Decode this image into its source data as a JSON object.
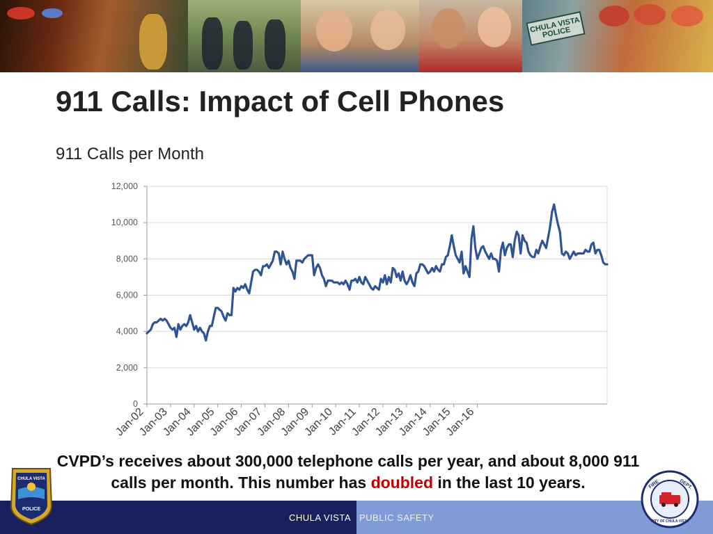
{
  "slide": {
    "title": "911 Calls: Impact of Cell Phones",
    "caption_part1": "CVPD’s receives about 300,000 telephone calls per year, and about 8,000 911 calls per month. This number has ",
    "caption_highlight": "doubled",
    "caption_part2": " in the last 10 years."
  },
  "banner": {
    "police_sign_text": "CHULA VISTA POLICE"
  },
  "footer": {
    "city": "CHULA VISTA",
    "unit": "PUBLIC SAFETY"
  },
  "badges": {
    "police": {
      "name": "CHULA VISTA",
      "label": "POLICE"
    },
    "fire": {
      "top": "FIRE",
      "right": "DEPT.",
      "bottom": "CITY OF CHULA VISTA"
    }
  },
  "colors": {
    "line": "#2f5496",
    "title": "#222222",
    "highlight": "#c00000",
    "footer_dark": "#18205e",
    "footer_light": "#7f9cd6"
  },
  "chart_data": {
    "type": "line",
    "title": "911 Calls per Month",
    "xlabel": "",
    "ylabel": "",
    "ylim": [
      0,
      12000
    ],
    "yticks": [
      0,
      2000,
      4000,
      6000,
      8000,
      10000,
      12000
    ],
    "ytick_labels": [
      "0",
      "2,000",
      "4,000",
      "6,000",
      "8,000",
      "10,000",
      "12,000"
    ],
    "xticks": [
      "Jan-02",
      "Jan-03",
      "Jan-04",
      "Jan-05",
      "Jan-06",
      "Jan-07",
      "Jan-08",
      "Jan-09",
      "Jan-10",
      "Jan-11",
      "Jan-12",
      "Jan-13",
      "Jan-14",
      "Jan-15",
      "Jan-16"
    ],
    "grid": "horizontal",
    "legend": "none",
    "series": [
      {
        "values": [
          3900,
          4000,
          4100,
          4400,
          4500,
          4500,
          4600,
          4700,
          4600,
          4700,
          4600,
          4400,
          4200,
          4100,
          4200,
          3700,
          4400,
          4100,
          4300,
          4400,
          4300,
          4500,
          4900,
          4500,
          4100,
          4300,
          4000,
          4200,
          4000,
          3900,
          3500,
          4000,
          4300,
          4300,
          4800,
          5300,
          5300,
          5200,
          5100,
          4800,
          4600,
          5000,
          4900,
          4900,
          6400,
          6200,
          6400,
          6300,
          6500,
          6400,
          6600,
          6300,
          6100,
          6700,
          7300,
          7400,
          7400,
          7300,
          7100,
          7600,
          7600,
          7700,
          7500,
          7700,
          7900,
          8400,
          8400,
          8300,
          7700,
          8400,
          8000,
          7700,
          7900,
          7500,
          7300,
          6900,
          7900,
          7900,
          7900,
          7800,
          8000,
          8100,
          8200,
          8200,
          8200,
          7100,
          7500,
          7700,
          7500,
          7100,
          6900,
          6500,
          6800,
          6800,
          6800,
          6700,
          6700,
          6700,
          6600,
          6700,
          6600,
          6800,
          6600,
          6300,
          6800,
          6800,
          6900,
          6700,
          7000,
          6700,
          6600,
          7000,
          6800,
          6600,
          6400,
          6300,
          6500,
          6400,
          6300,
          6900,
          6700,
          7100,
          6600,
          7000,
          6700,
          7500,
          7400,
          7000,
          7200,
          6800,
          7300,
          6800,
          6600,
          6800,
          7100,
          6700,
          6500,
          7200,
          7300,
          7700,
          7700,
          7600,
          7400,
          7200,
          7300,
          7500,
          7300,
          7600,
          7400,
          7300,
          7700,
          7700,
          8100,
          8200,
          8700,
          9300,
          8700,
          8200,
          8000,
          7800,
          8400,
          7200,
          7600,
          7300,
          7000,
          9100,
          9800,
          8600,
          8000,
          8300,
          8600,
          8700,
          8400,
          8200,
          8000,
          8300,
          8000,
          8000,
          7900,
          7300,
          8500,
          8900,
          8200,
          8600,
          8800,
          8800,
          8100,
          9000,
          9500,
          9300,
          8300,
          9300,
          9000,
          8900,
          8400,
          8200,
          8100,
          8100,
          8500,
          8300,
          8700,
          9000,
          8800,
          8600,
          9200,
          9800,
          10600,
          11000,
          10400,
          9900,
          9500,
          8300,
          8200,
          8400,
          8300,
          8000,
          8200,
          8400,
          8200,
          8300,
          8300,
          8300,
          8300,
          8500,
          8400,
          8400,
          8800,
          8900,
          8300,
          8500,
          8500,
          8200,
          7800,
          7700,
          7700
        ]
      }
    ]
  }
}
